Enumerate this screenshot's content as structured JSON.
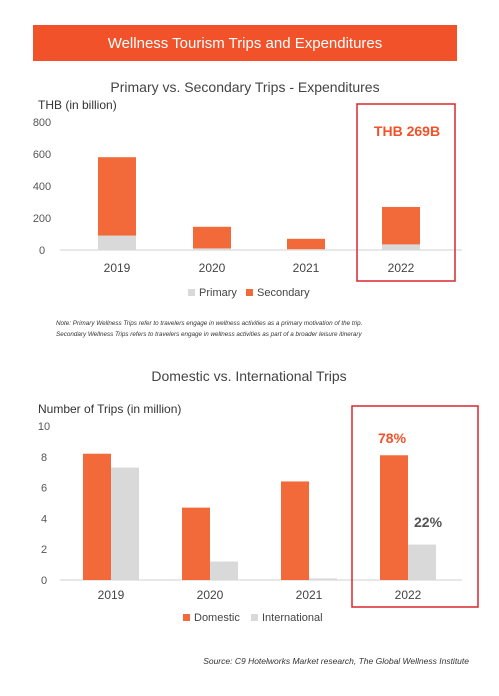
{
  "banner": {
    "title": "Wellness Tourism Trips and Expenditures"
  },
  "colors": {
    "accent": "#f2522a",
    "secondary_bar": "#f26a3a",
    "primary_bar": "#d9d9d9",
    "highlight_box": "#d9262d",
    "callout_dark": "#555555"
  },
  "chart_data": [
    {
      "type": "bar",
      "stacked": true,
      "title": "Primary vs. Secondary Trips - Expenditures",
      "ylabel": "THB (in billion)",
      "ylim": [
        0,
        800
      ],
      "yticks": [
        0,
        200,
        400,
        600,
        800
      ],
      "grid": false,
      "legend_position": "bottom",
      "categories": [
        "2019",
        "2020",
        "2021",
        "2022"
      ],
      "series": [
        {
          "name": "Primary",
          "values": [
            90,
            10,
            5,
            35
          ]
        },
        {
          "name": "Secondary",
          "values": [
            490,
            135,
            65,
            234
          ]
        }
      ],
      "callout": {
        "label": "THB 269B",
        "category": "2022"
      }
    },
    {
      "type": "bar",
      "stacked": false,
      "title": "Domestic vs. International Trips",
      "ylabel": "Number of Trips (in million)",
      "ylim": [
        0,
        10
      ],
      "yticks": [
        0,
        2,
        4,
        6,
        8,
        10
      ],
      "grid": false,
      "legend_position": "bottom",
      "categories": [
        "2019",
        "2020",
        "2021",
        "2022"
      ],
      "series": [
        {
          "name": "Domestic",
          "values": [
            8.2,
            4.7,
            6.4,
            8.1
          ]
        },
        {
          "name": "International",
          "values": [
            7.3,
            1.2,
            0.1,
            2.3
          ]
        }
      ],
      "callouts": [
        {
          "label": "78%",
          "category": "2022",
          "series": "Domestic"
        },
        {
          "label": "22%",
          "category": "2022",
          "series": "International"
        }
      ]
    }
  ],
  "note": {
    "line1": "Note: Primary Wellness Trips refer to travelers engage in wellness activities as a primary motivation of the trip.",
    "line2": "Secondary Wellness Trips refers to travelers engage in wellness activities as part of a broader leisure itinerary"
  },
  "source": "Source: C9 Hotelworks Market research, The Global Wellness Institute"
}
